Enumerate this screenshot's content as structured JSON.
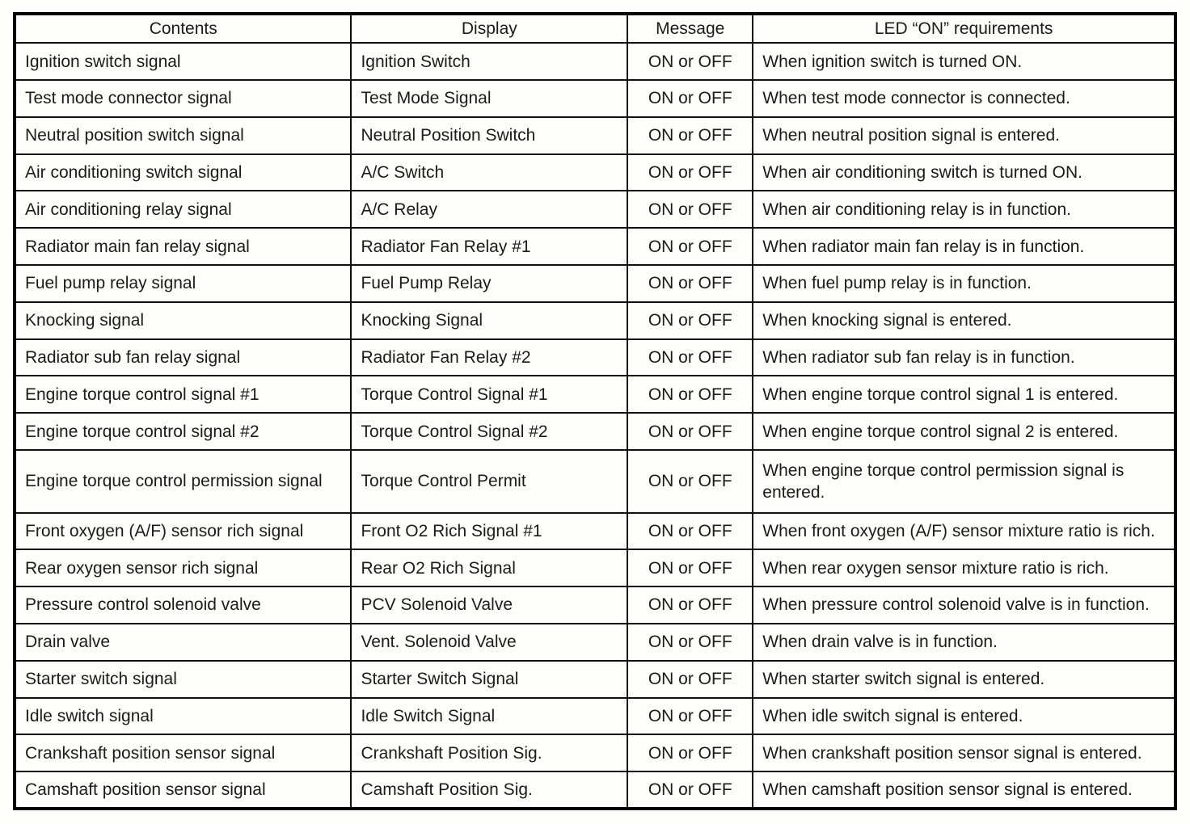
{
  "table": {
    "headers": {
      "contents": "Contents",
      "display": "Display",
      "message": "Message",
      "led": "LED “ON” requirements"
    },
    "rows": [
      {
        "contents": "Ignition switch signal",
        "display": "Ignition Switch",
        "message": "ON or OFF",
        "led": "When ignition switch is turned ON."
      },
      {
        "contents": "Test mode connector signal",
        "display": "Test Mode Signal",
        "message": "ON or OFF",
        "led": "When test mode connector is connected."
      },
      {
        "contents": "Neutral position switch signal",
        "display": "Neutral Position Switch",
        "message": "ON or OFF",
        "led": "When neutral position signal is entered."
      },
      {
        "contents": "Air conditioning switch signal",
        "display": "A/C Switch",
        "message": "ON or OFF",
        "led": "When air conditioning switch is turned ON."
      },
      {
        "contents": "Air conditioning relay signal",
        "display": "A/C Relay",
        "message": "ON or OFF",
        "led": "When air conditioning relay is in function."
      },
      {
        "contents": "Radiator main fan relay signal",
        "display": "Radiator Fan Relay #1",
        "message": "ON or OFF",
        "led": "When radiator main fan relay is in function."
      },
      {
        "contents": "Fuel pump relay signal",
        "display": "Fuel Pump Relay",
        "message": "ON or OFF",
        "led": "When fuel pump relay is in function."
      },
      {
        "contents": "Knocking signal",
        "display": "Knocking Signal",
        "message": "ON or OFF",
        "led": "When knocking signal is entered."
      },
      {
        "contents": "Radiator sub fan relay signal",
        "display": "Radiator Fan Relay #2",
        "message": "ON or OFF",
        "led": "When radiator sub fan relay is in function."
      },
      {
        "contents": "Engine torque control signal #1",
        "display": "Torque Control Signal #1",
        "message": "ON or OFF",
        "led": "When engine torque control signal 1 is entered."
      },
      {
        "contents": "Engine torque control signal #2",
        "display": "Torque Control Signal #2",
        "message": "ON or OFF",
        "led": "When engine torque control signal 2 is entered."
      },
      {
        "contents": "Engine torque control permission signal",
        "display": "Torque Control Permit",
        "message": "ON or OFF",
        "led": "When engine torque control permission signal is entered."
      },
      {
        "contents": "Front oxygen (A/F) sensor rich signal",
        "display": "Front O2 Rich Signal #1",
        "message": "ON or OFF",
        "led": "When front oxygen (A/F) sensor mixture ratio is rich."
      },
      {
        "contents": "Rear oxygen sensor rich signal",
        "display": "Rear O2 Rich Signal",
        "message": "ON or OFF",
        "led": "When rear oxygen sensor mixture ratio is rich."
      },
      {
        "contents": "Pressure control solenoid valve",
        "display": "PCV Solenoid Valve",
        "message": "ON or OFF",
        "led": "When pressure control solenoid valve is in function."
      },
      {
        "contents": "Drain valve",
        "display": "Vent. Solenoid Valve",
        "message": "ON or OFF",
        "led": "When drain valve is in function."
      },
      {
        "contents": "Starter switch signal",
        "display": "Starter Switch Signal",
        "message": "ON or OFF",
        "led": "When starter switch signal is entered."
      },
      {
        "contents": "Idle switch signal",
        "display": "Idle Switch Signal",
        "message": "ON or OFF",
        "led": "When idle switch signal is entered."
      },
      {
        "contents": "Crankshaft position sensor signal",
        "display": "Crankshaft Position Sig.",
        "message": "ON or OFF",
        "led": "When crankshaft position sensor signal is entered."
      },
      {
        "contents": "Camshaft position sensor signal",
        "display": "Camshaft Position Sig.",
        "message": "ON or OFF",
        "led": "When camshaft position sensor signal is entered."
      }
    ]
  }
}
